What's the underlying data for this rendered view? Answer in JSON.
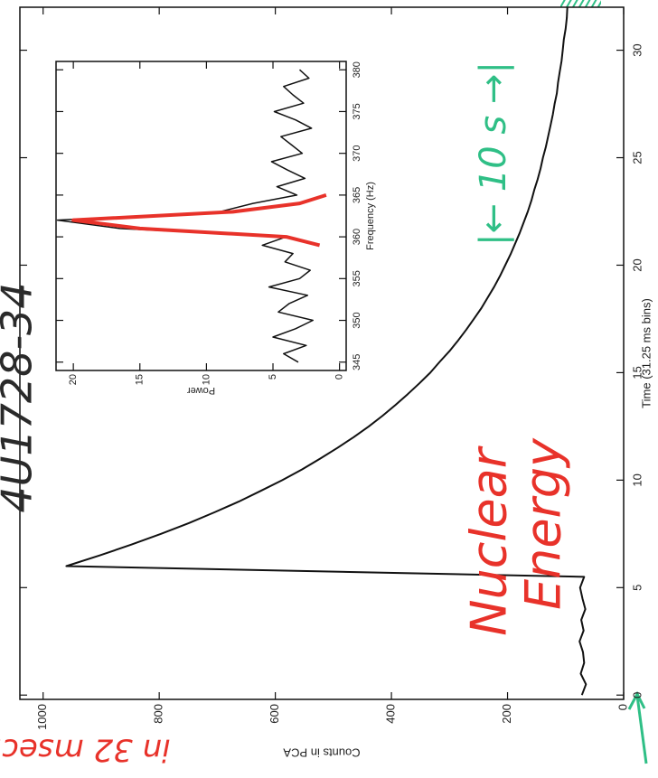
{
  "chart_data": [
    {
      "type": "line",
      "xlabel": "Time (31.25 ms bins)",
      "ylabel": "Counts in PCA",
      "x": [
        0,
        0.5,
        1,
        1.5,
        2,
        2.5,
        3,
        3.5,
        4,
        4.5,
        5,
        5.5,
        6,
        6.5,
        7,
        7.5,
        8,
        8.5,
        9,
        9.5,
        10,
        10.5,
        11,
        11.5,
        12,
        12.5,
        13,
        13.5,
        14,
        14.5,
        15,
        15.5,
        16,
        16.5,
        17,
        17.5,
        18,
        18.5,
        19,
        19.5,
        20,
        20.5,
        21,
        21.5,
        22,
        22.5,
        23,
        23.5,
        24,
        24.5,
        25,
        25.5,
        26,
        26.5,
        27,
        27.5,
        28,
        28.5,
        29,
        29.5,
        30,
        30.5,
        31,
        31.5,
        32
      ],
      "series": [
        {
          "color": "#111111",
          "values": [
            72,
            65,
            74,
            68,
            70,
            76,
            69,
            73,
            66,
            71,
            75,
            68,
            960,
            902,
            848,
            797,
            749,
            705,
            663,
            625,
            588,
            554,
            523,
            493,
            465,
            439,
            415,
            393,
            372,
            352,
            333,
            317,
            300,
            285,
            271,
            258,
            245,
            234,
            223,
            213,
            204,
            195,
            187,
            179,
            172,
            165,
            159,
            154,
            148,
            143,
            139,
            134,
            130,
            126,
            122,
            119,
            115,
            113,
            110,
            107,
            105,
            103,
            100,
            98,
            97
          ]
        }
      ],
      "xlim": [
        -0.2,
        32
      ],
      "ylim": [
        0,
        1040
      ],
      "xticks": [
        0,
        5,
        10,
        15,
        20,
        25,
        30
      ],
      "yticks": [
        0,
        200,
        400,
        600,
        800,
        1000
      ],
      "grid": false
    },
    {
      "type": "line",
      "xlabel": "Frequency (Hz)",
      "ylabel": "Power",
      "x": [
        345,
        346,
        347,
        348,
        349,
        350,
        351,
        352,
        353,
        354,
        355,
        356,
        357,
        358,
        359,
        360,
        361,
        362,
        363,
        364,
        365,
        366,
        367,
        368,
        369,
        370,
        371,
        372,
        373,
        374,
        375,
        376,
        377,
        378,
        379,
        380
      ],
      "series": [
        {
          "color": "#111111",
          "values": [
            3.1,
            4.2,
            2.5,
            5.0,
            3.3,
            2.0,
            4.6,
            3.8,
            2.4,
            5.3,
            3.0,
            2.2,
            4.1,
            3.5,
            5.8,
            4.0,
            16.5,
            21.2,
            9.0,
            6.5,
            3.2,
            4.7,
            2.6,
            3.9,
            5.1,
            2.8,
            3.6,
            4.4,
            2.1,
            3.3,
            4.9,
            2.7,
            3.5,
            4.2,
            2.3,
            3.0
          ]
        },
        {
          "color": "#e8322a",
          "values": [
            null,
            null,
            null,
            null,
            null,
            null,
            null,
            null,
            null,
            null,
            null,
            null,
            null,
            null,
            1.5,
            4,
            15,
            20,
            8,
            3,
            1,
            null,
            null,
            null,
            null,
            null,
            null,
            null,
            null,
            null,
            null,
            null,
            null,
            null,
            null,
            null
          ]
        }
      ],
      "xlim": [
        344,
        381
      ],
      "ylim": [
        -0.5,
        21.3
      ],
      "xticks": [
        345,
        350,
        355,
        360,
        365,
        370,
        375,
        380
      ],
      "yticks": [
        0,
        5,
        10,
        15,
        20
      ],
      "grid": false
    }
  ],
  "annotations": {
    "source": "4U1728-34",
    "energy": [
      "Nuclear",
      "Energy"
    ],
    "duration": "|← 10 s →|",
    "rise": "in 32 msec."
  }
}
